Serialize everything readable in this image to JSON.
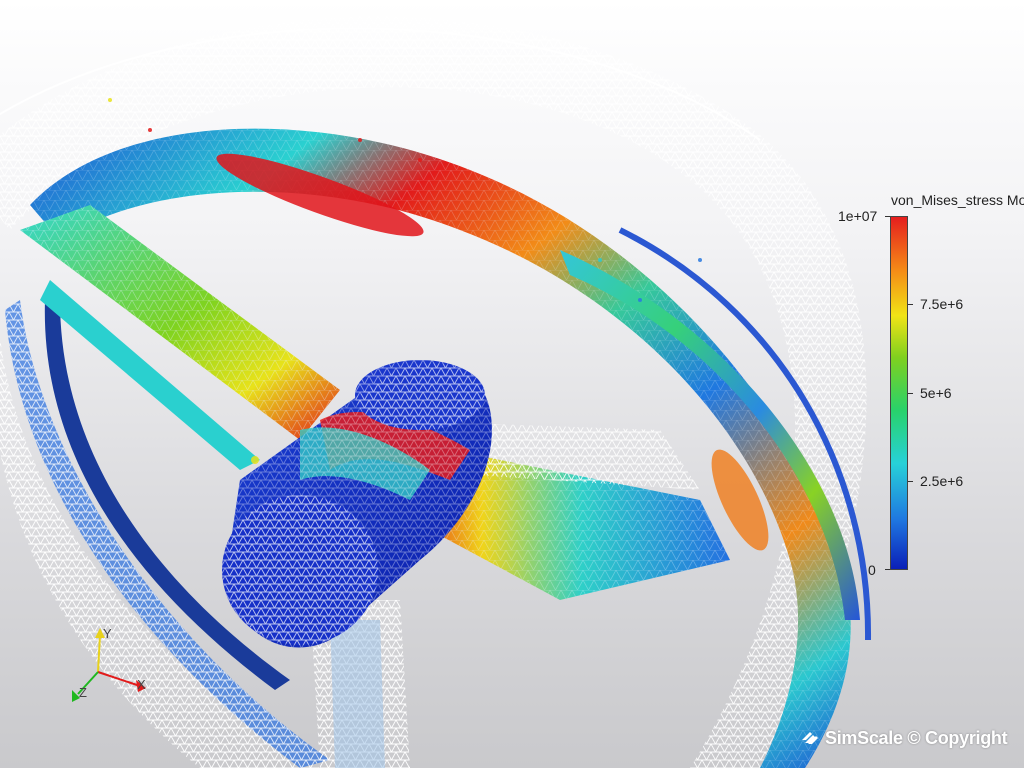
{
  "viewer": {
    "background_top": "#ffffff",
    "background_bottom": "#c9c9cc"
  },
  "legend": {
    "title": "von_Mises_stress Mo",
    "max_label": "1e+07",
    "labels": [
      "7.5e+6",
      "5e+6",
      "2.5e+6"
    ],
    "min_label": "0",
    "range": [
      0,
      10000000
    ],
    "tick_values": [
      7500000,
      5000000,
      2500000
    ],
    "colormap": [
      "#0a1fb8",
      "#1f77e0",
      "#27d1d8",
      "#28d26b",
      "#7fd01f",
      "#f1e416",
      "#f58a17",
      "#e51e1e"
    ]
  },
  "axes_triad": {
    "labels": [
      "Y",
      "Z",
      "X"
    ],
    "colors": {
      "x": "#e21b1b",
      "y": "#e8d21b",
      "z": "#1fb81f"
    }
  },
  "watermark": {
    "text": "SimScale © Copyright",
    "icon": "simscale-logo-icon"
  }
}
